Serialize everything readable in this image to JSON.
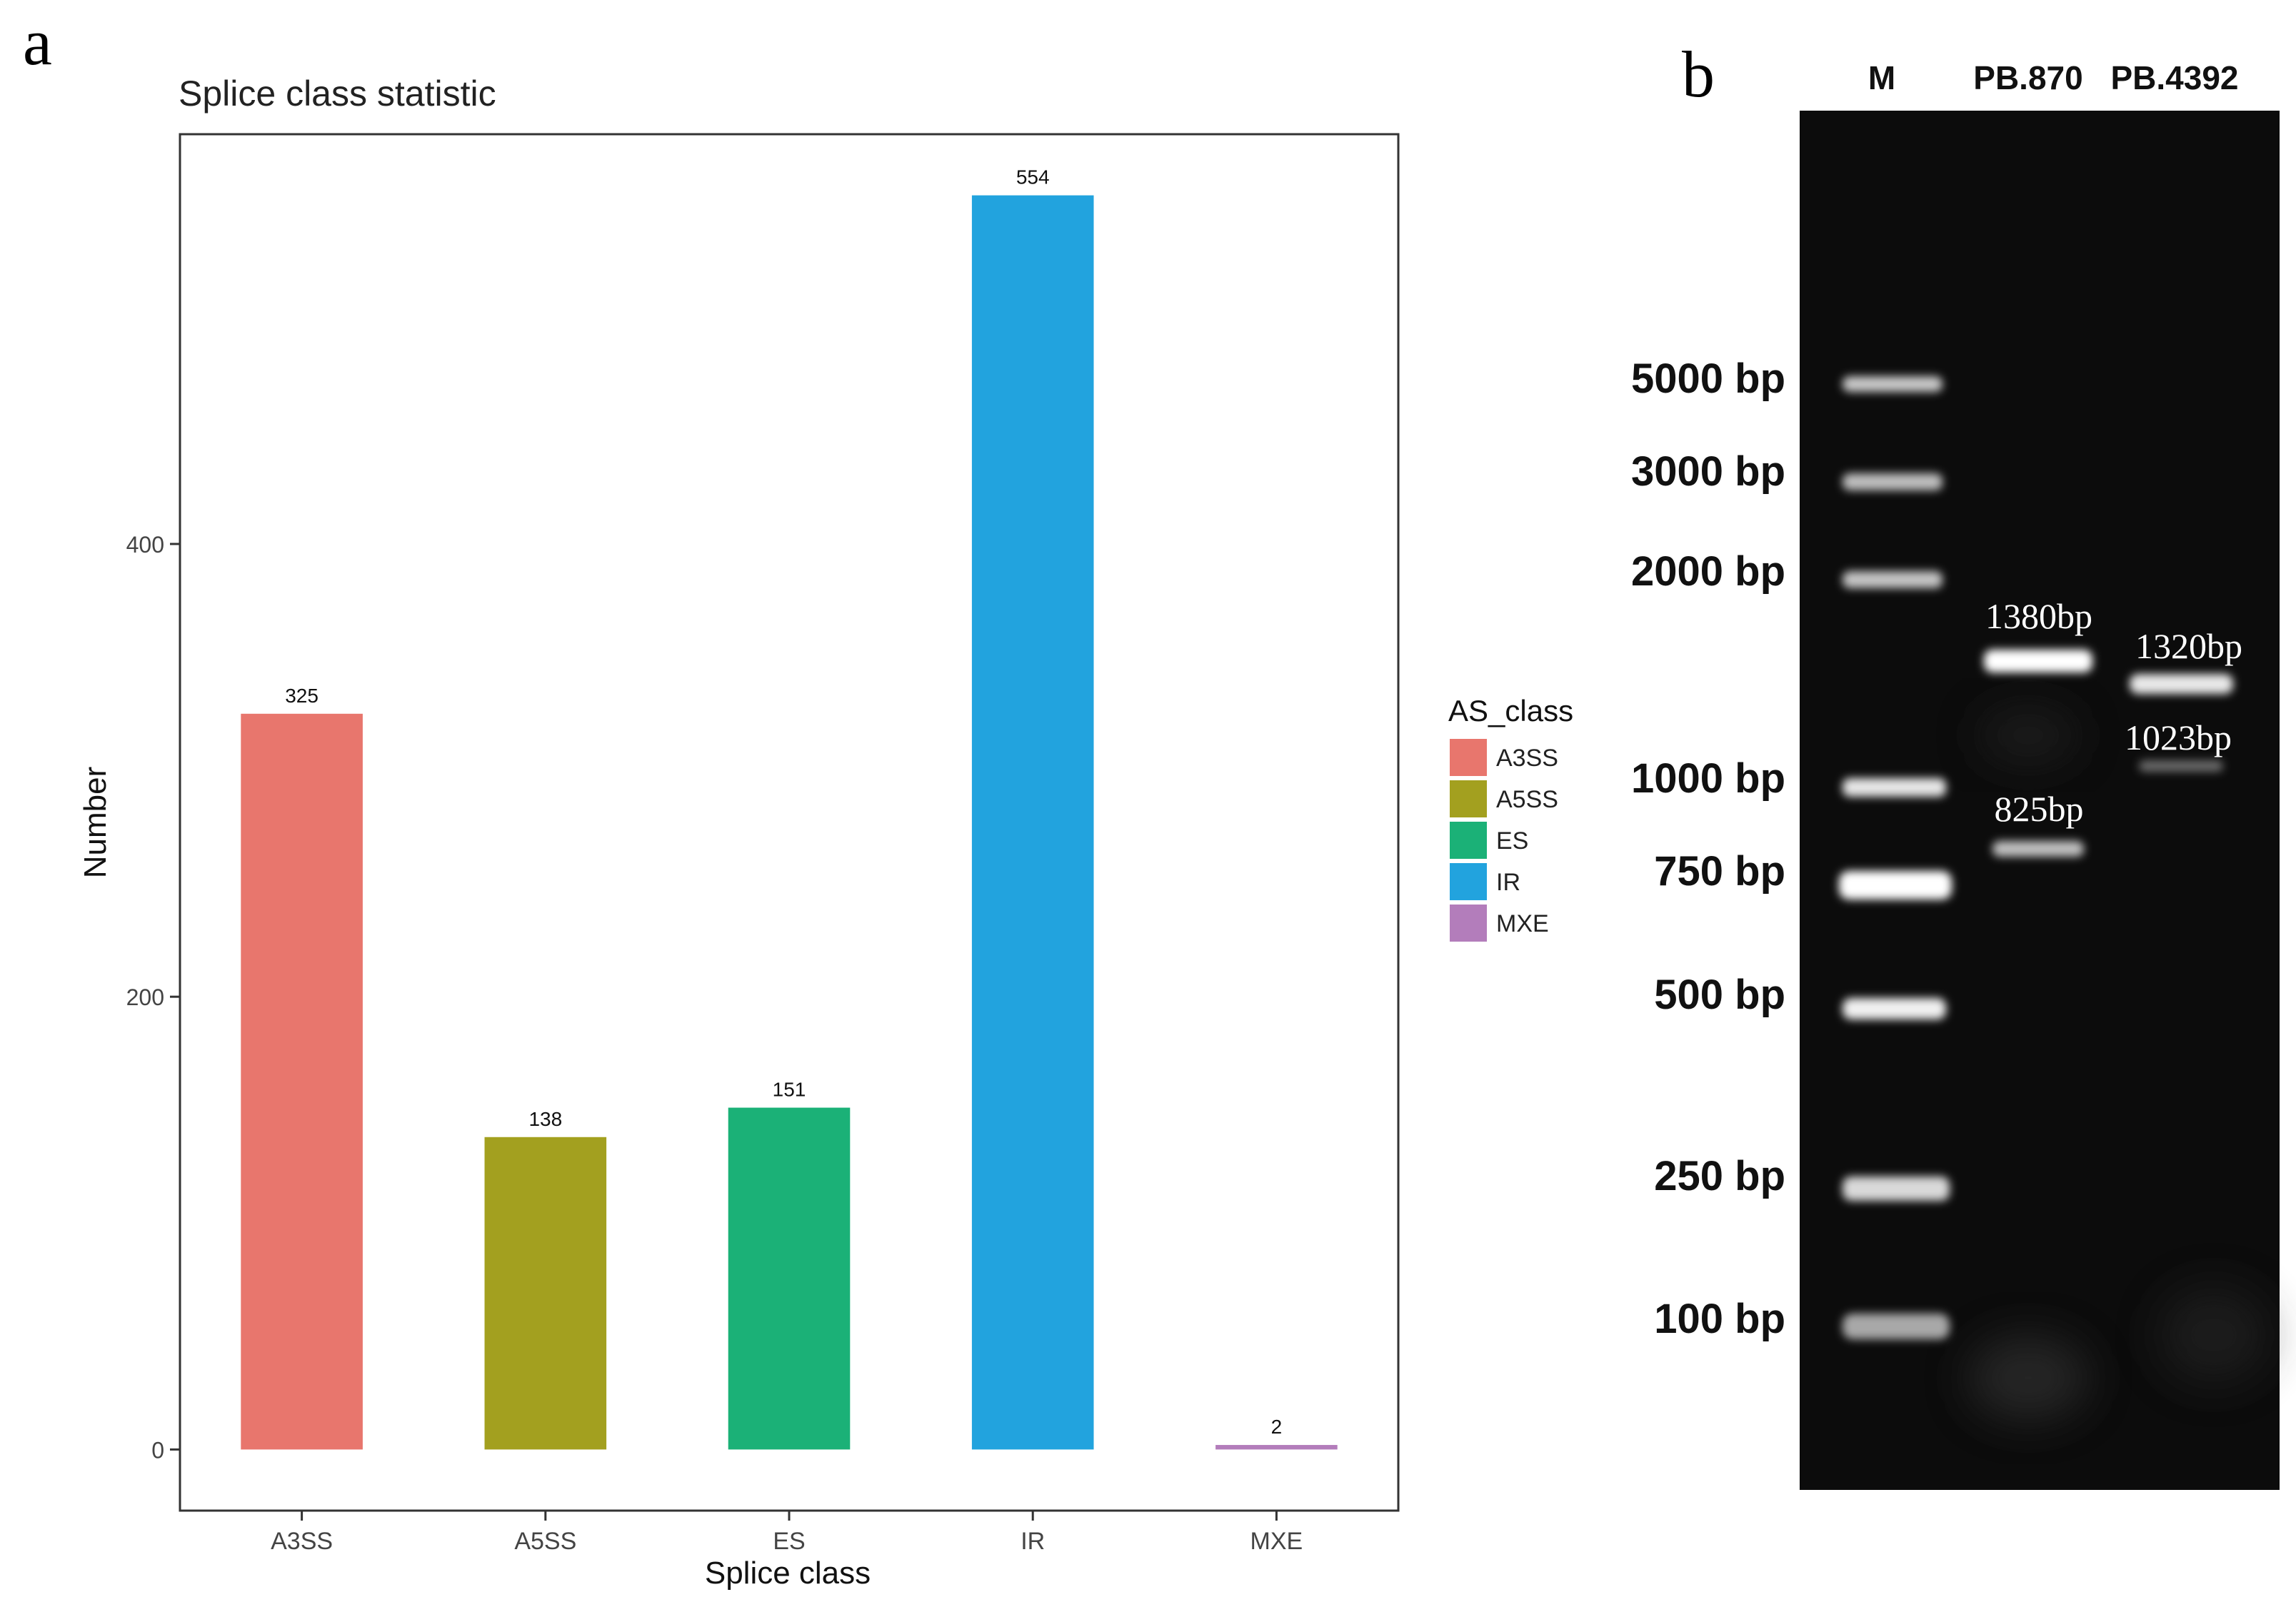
{
  "panel_a": {
    "label": "a",
    "chart_data": {
      "type": "bar",
      "title": "Splice class statistic",
      "xlabel": "Splice class",
      "ylabel": "Number",
      "categories": [
        "A3SS",
        "A5SS",
        "ES",
        "IR",
        "MXE"
      ],
      "values": [
        325,
        138,
        151,
        554,
        2
      ],
      "data_labels": [
        "325",
        "138",
        "151",
        "554",
        "2"
      ],
      "colors": [
        "#E8766D",
        "#A3A01F",
        "#1BB177",
        "#22A3DE",
        "#B37DBB"
      ],
      "ylim": [
        -27,
        581
      ],
      "yticks": [
        0,
        200,
        400
      ],
      "grid": false,
      "legend": {
        "title": "AS_class",
        "placement": "right",
        "entries": [
          "A3SS",
          "A5SS",
          "ES",
          "IR",
          "MXE"
        ]
      }
    }
  },
  "panel_b": {
    "label": "b",
    "lane_labels": [
      "M",
      "PB.870",
      "PB.4392"
    ],
    "marker_labels": [
      "5000 bp",
      "3000 bp",
      "2000 bp",
      "1000 bp",
      "750 bp",
      "500 bp",
      "250 bp",
      "100 bp"
    ],
    "band_labels": [
      "1380bp",
      "825bp",
      "1320bp",
      "1023bp"
    ],
    "gel_color": "#0c0c0c",
    "band_color": "#f2f2f2"
  }
}
